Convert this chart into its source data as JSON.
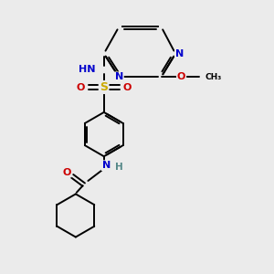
{
  "bg_color": "#ebebeb",
  "atom_colors": {
    "C": "#000000",
    "N": "#0000cc",
    "O": "#cc0000",
    "S": "#ccaa00",
    "H": "#558888"
  },
  "bond_color": "#000000",
  "bond_width": 1.4,
  "figsize": [
    3.0,
    3.0
  ],
  "dpi": 100,
  "xlim": [
    0,
    10
  ],
  "ylim": [
    0,
    10
  ]
}
